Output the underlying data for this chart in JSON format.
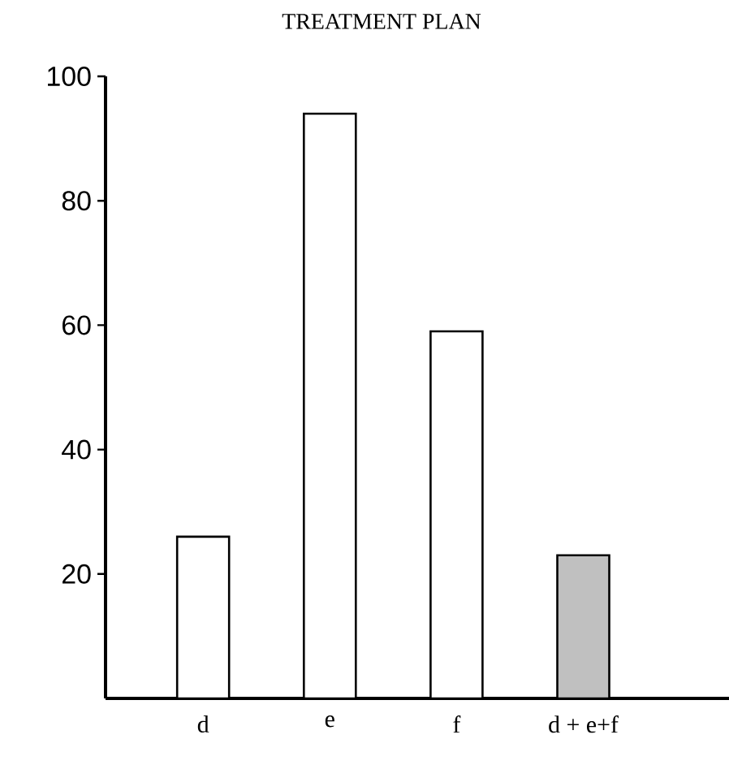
{
  "chart_data": {
    "type": "bar",
    "title": "TREATMENT PLAN",
    "categories": [
      "d",
      "e",
      "f",
      "d + e+f"
    ],
    "values": [
      26,
      94,
      59,
      23
    ],
    "colors": [
      "#ffffff",
      "#ffffff",
      "#ffffff",
      "#c0c0c0"
    ],
    "ylim": [
      0,
      100
    ],
    "yticks": [
      20,
      40,
      60,
      80,
      100
    ]
  }
}
